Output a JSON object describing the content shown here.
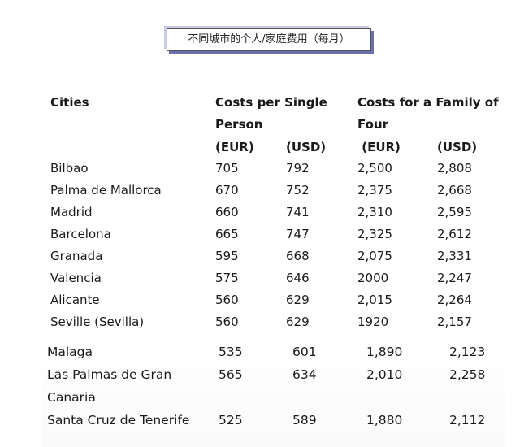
{
  "caption": "不同城市的个人/家庭费用（每月）",
  "headers": {
    "cities": "Cities",
    "single_line1": "Costs per Single",
    "single_line2": "Person",
    "family_line1": "Costs for a Family of",
    "family_line2": "Four",
    "eur1": "(EUR)",
    "usd1": "(USD)",
    "eur2": " (EUR)",
    "usd2": "(USD)"
  },
  "rows": [
    {
      "city": "Bilbao",
      "s_eur": "705",
      "s_usd": "792",
      "f_eur": "2,500",
      "f_usd": "2,808"
    },
    {
      "city": "Palma de Mallorca",
      "s_eur": "670",
      "s_usd": "752",
      "f_eur": "2,375",
      "f_usd": "2,668"
    },
    {
      "city": "Madrid",
      "s_eur": "660",
      "s_usd": "741",
      "f_eur": "2,310",
      "f_usd": "2,595"
    },
    {
      "city": "Barcelona",
      "s_eur": "665",
      "s_usd": "747",
      "f_eur": "2,325",
      "f_usd": "2,612"
    },
    {
      "city": "Granada",
      "s_eur": "595",
      "s_usd": "668",
      "f_eur": "2,075",
      "f_usd": "2,331"
    },
    {
      "city": "Valencia",
      "s_eur": "575",
      "s_usd": "646",
      "f_eur": "2000",
      "f_usd": "2,247"
    },
    {
      "city": "Alicante",
      "s_eur": "560",
      "s_usd": "629",
      "f_eur": "2,015",
      "f_usd": "2,264"
    },
    {
      "city": "Seville (Sevilla)",
      "s_eur": "560",
      "s_usd": "629",
      "f_eur": "1920",
      "f_usd": "2,157"
    }
  ],
  "rows2": [
    {
      "city": "Malaga",
      "s_eur": "535",
      "s_usd": "601",
      "f_eur": "1,890",
      "f_usd": "2,123"
    },
    {
      "city": "Las Palmas de Gran",
      "city2": "Canaria",
      "s_eur": "565",
      "s_usd": "634",
      "f_eur": "2,010",
      "f_usd": "2,258"
    },
    {
      "city": "Santa Cruz de Tenerife",
      "s_eur": "525",
      "s_usd": "589",
      "f_eur": "1,880",
      "f_usd": "2,112"
    }
  ]
}
